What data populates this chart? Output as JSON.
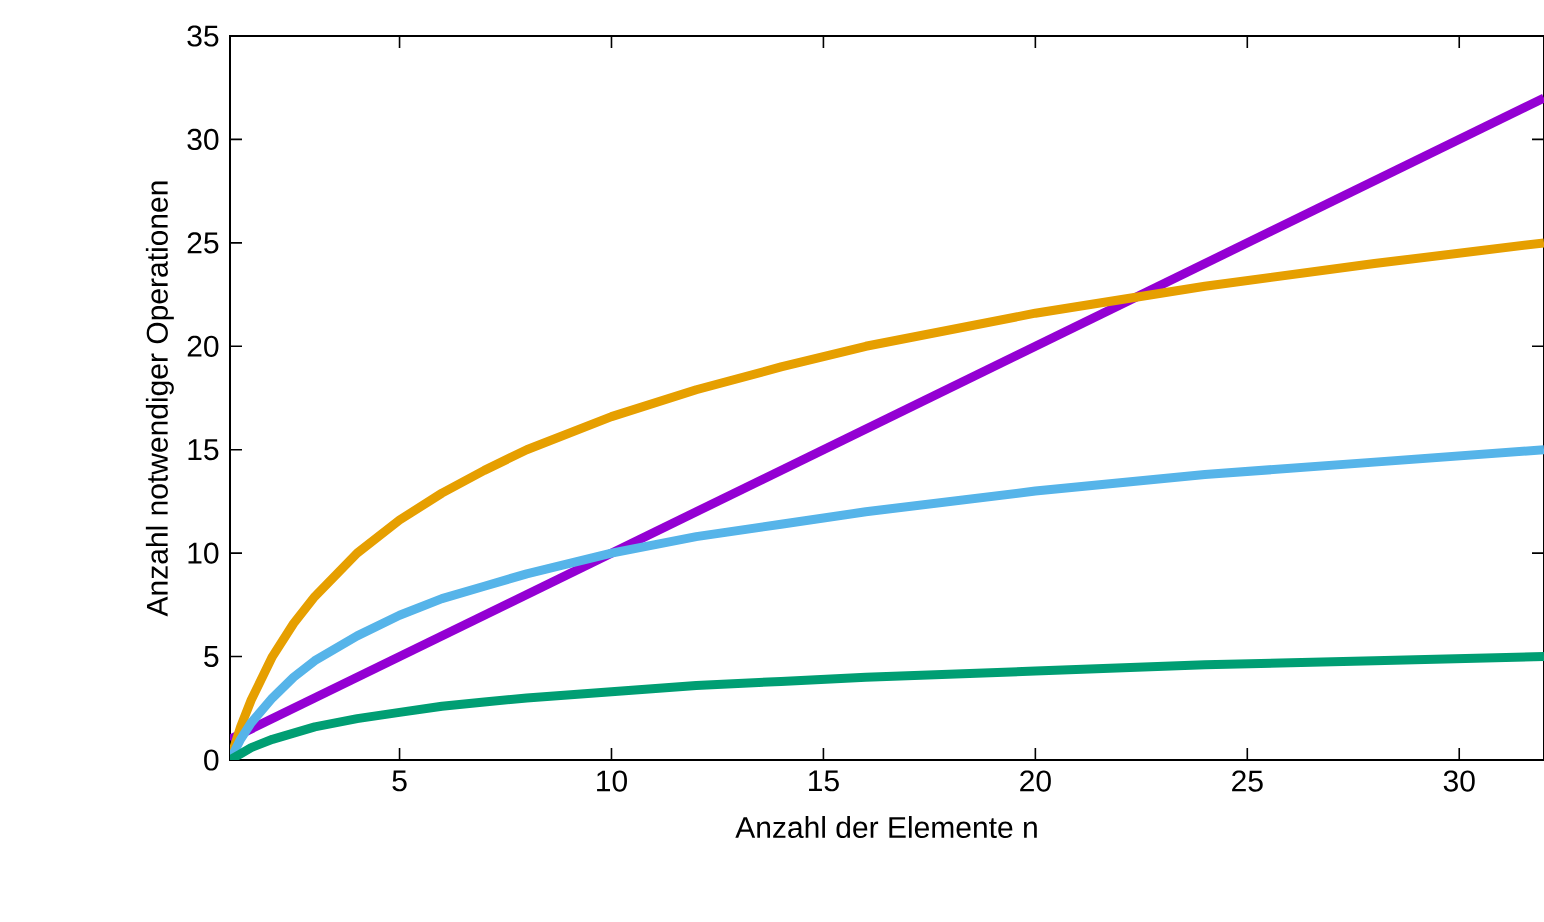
{
  "chart_data": {
    "type": "line",
    "xlabel": "Anzahl der Elemente n",
    "ylabel": "Anzahl notwendiger Operationen",
    "xlim": [
      1,
      32
    ],
    "ylim": [
      0,
      35
    ],
    "xticks": [
      5,
      10,
      15,
      20,
      25,
      30
    ],
    "yticks": [
      0,
      5,
      10,
      15,
      20,
      25,
      30,
      35
    ],
    "marker": "none",
    "line_style": "solid",
    "series": [
      {
        "color": "#9400d3",
        "x": [
          1,
          32
        ],
        "values": [
          1,
          32
        ]
      },
      {
        "color": "#e69f00",
        "x": [
          1,
          1.25,
          1.5,
          2,
          2.5,
          3,
          4,
          5,
          6,
          7,
          8,
          10,
          12,
          14,
          16,
          20,
          24,
          28,
          32
        ],
        "values": [
          0,
          1.6,
          2.9,
          5,
          6.6,
          7.9,
          10,
          11.6,
          12.9,
          14,
          15,
          16.6,
          17.9,
          19,
          20,
          21.6,
          22.9,
          24,
          25
        ]
      },
      {
        "color": "#56b4e9",
        "x": [
          1,
          1.25,
          1.5,
          2,
          2.5,
          3,
          4,
          5,
          6,
          7,
          8,
          10,
          12,
          14,
          16,
          20,
          24,
          28,
          32
        ],
        "values": [
          0,
          1,
          1.8,
          3,
          4,
          4.8,
          6,
          7,
          7.8,
          8.4,
          9,
          10,
          10.8,
          11.4,
          12,
          13,
          13.8,
          14.4,
          15
        ]
      },
      {
        "color": "#009e73",
        "x": [
          1,
          1.25,
          1.5,
          2,
          2.5,
          3,
          4,
          5,
          6,
          7,
          8,
          10,
          12,
          14,
          16,
          20,
          24,
          28,
          32
        ],
        "values": [
          0,
          0.3,
          0.6,
          1,
          1.3,
          1.6,
          2,
          2.3,
          2.6,
          2.8,
          3,
          3.3,
          3.6,
          3.8,
          4,
          4.3,
          4.6,
          4.8,
          5
        ]
      }
    ]
  }
}
